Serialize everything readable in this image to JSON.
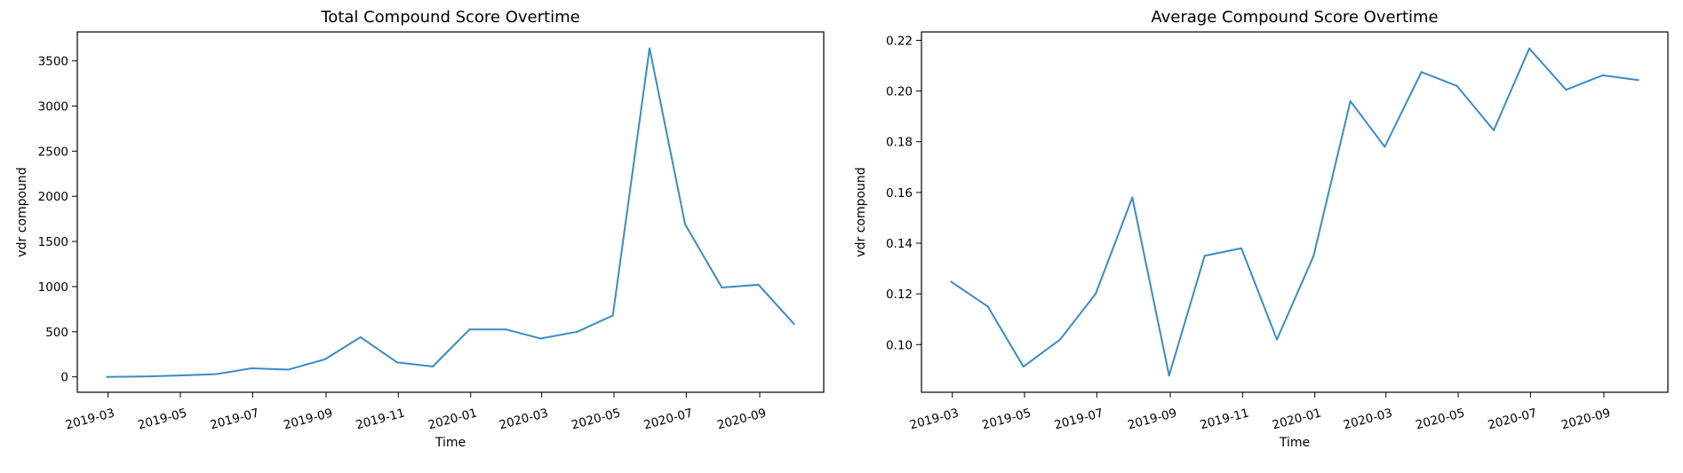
{
  "chart_data": [
    {
      "type": "line",
      "title": "Total Compound Score Overtime",
      "xlabel": "Time",
      "ylabel": "vdr compound",
      "x": [
        "2019-02-28",
        "2019-03-31",
        "2019-04-30",
        "2019-05-31",
        "2019-06-30",
        "2019-07-31",
        "2019-08-31",
        "2019-09-30",
        "2019-10-31",
        "2019-11-30",
        "2019-12-31",
        "2020-01-31",
        "2020-02-29",
        "2020-03-31",
        "2020-04-30",
        "2020-05-31",
        "2020-06-30",
        "2020-07-31",
        "2020-08-31",
        "2020-09-30"
      ],
      "series": [
        {
          "values": [
            0,
            5,
            15,
            30,
            95,
            80,
            195,
            440,
            160,
            115,
            525,
            525,
            425,
            500,
            680,
            3640,
            1690,
            990,
            1020,
            585
          ]
        }
      ],
      "ylim": [
        -170,
        3820
      ],
      "yticks": [
        0,
        500,
        1000,
        1500,
        2000,
        2500,
        3000,
        3500
      ],
      "ytick_labels": [
        "0",
        "500",
        "1000",
        "1500",
        "2000",
        "2500",
        "3000",
        "3500"
      ],
      "xticks": [
        "2019-03-01",
        "2019-05-01",
        "2019-07-01",
        "2019-09-01",
        "2019-11-01",
        "2020-01-01",
        "2020-03-01",
        "2020-05-01",
        "2020-07-01",
        "2020-09-01"
      ],
      "xtick_labels": [
        "2019-03",
        "2019-05",
        "2019-07",
        "2019-09",
        "2019-11",
        "2020-01",
        "2020-03",
        "2020-05",
        "2020-07",
        "2020-09"
      ],
      "xlim": [
        "2019-02-03",
        "2020-10-25"
      ],
      "grid": false,
      "color": "#3b8bc2"
    },
    {
      "type": "line",
      "title": "Average Compound Score Overtime",
      "xlabel": "Time",
      "ylabel": "vdr compound",
      "x": [
        "2019-02-28",
        "2019-03-31",
        "2019-04-30",
        "2019-05-31",
        "2019-06-30",
        "2019-07-31",
        "2019-08-31",
        "2019-09-30",
        "2019-10-31",
        "2019-11-30",
        "2019-12-31",
        "2020-01-31",
        "2020-02-29",
        "2020-03-31",
        "2020-04-30",
        "2020-05-31",
        "2020-06-30",
        "2020-07-31",
        "2020-08-31",
        "2020-09-30"
      ],
      "series": [
        {
          "values": [
            0.1248,
            0.115,
            0.0913,
            0.102,
            0.12,
            0.158,
            0.0878,
            0.135,
            0.138,
            0.102,
            0.135,
            0.196,
            0.178,
            0.2075,
            0.202,
            0.1845,
            0.2168,
            0.2005,
            0.2062,
            0.2043
          ]
        }
      ],
      "ylim": [
        0.0812,
        0.2233
      ],
      "yticks": [
        0.1,
        0.12,
        0.14,
        0.16,
        0.18,
        0.2,
        0.22
      ],
      "ytick_labels": [
        "0.10",
        "0.12",
        "0.14",
        "0.16",
        "0.18",
        "0.20",
        "0.22"
      ],
      "xticks": [
        "2019-03-01",
        "2019-05-01",
        "2019-07-01",
        "2019-09-01",
        "2019-11-01",
        "2020-01-01",
        "2020-03-01",
        "2020-05-01",
        "2020-07-01",
        "2020-09-01"
      ],
      "xtick_labels": [
        "2019-03",
        "2019-05",
        "2019-07",
        "2019-09",
        "2019-11",
        "2020-01",
        "2020-03",
        "2020-05",
        "2020-07",
        "2020-09"
      ],
      "xlim": [
        "2019-02-03",
        "2020-10-25"
      ],
      "grid": false,
      "color": "#3b8bc2"
    }
  ]
}
